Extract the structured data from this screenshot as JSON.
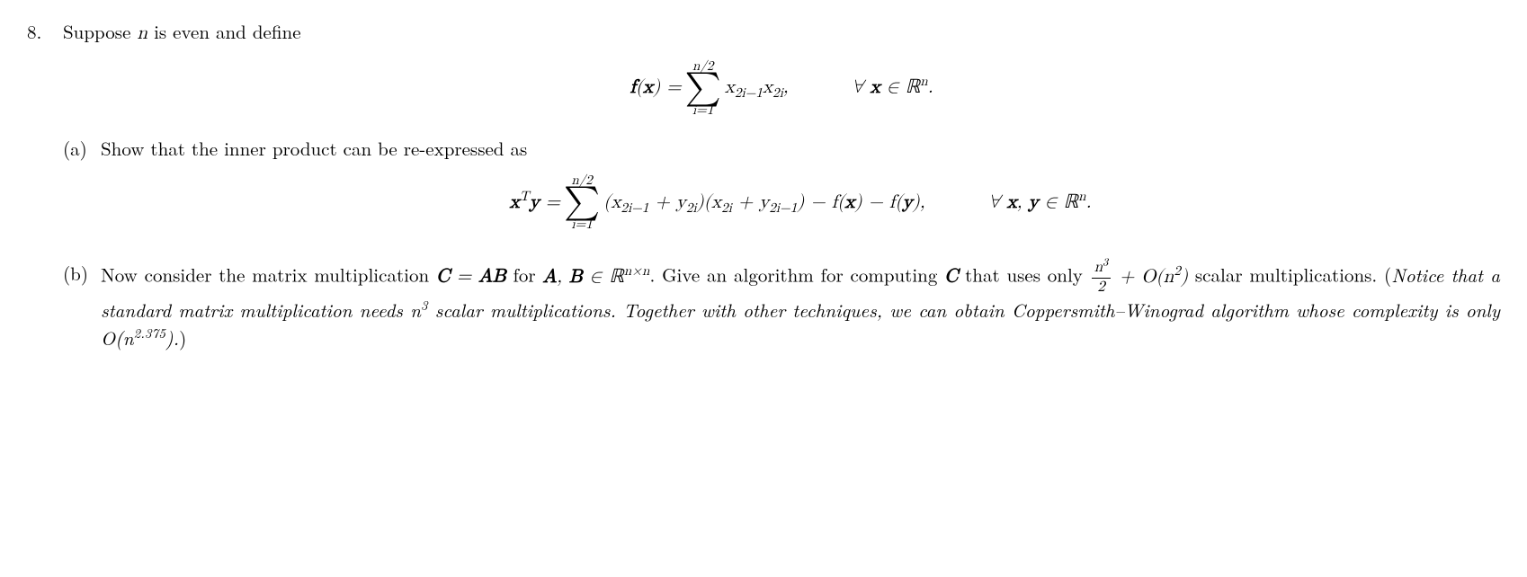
{
  "problem": {
    "number": "8.",
    "intro_prefix": "Suppose ",
    "intro_var": "n",
    "intro_suffix": " is even and define",
    "eq1": {
      "lhs": "f(x)",
      "sum_upper": "n/2",
      "sum_lower": "i=1",
      "summand_html": "x<sub>2i−1</sub>x<sub>2i</sub>,",
      "forall": "∀ x ∈ ℝ",
      "forall_sup": "n",
      "forall_end": "."
    },
    "part_a": {
      "label": "(a)",
      "text": "Show that the inner product can be re-expressed as",
      "eq": {
        "lhs_html": "x<sup>T</sup>y",
        "sum_upper": "n/2",
        "sum_lower": "i=1",
        "summand_html": "(x<sub>2i−1</sub> + y<sub>2i</sub>)(x<sub>2i</sub> + y<sub>2i−1</sub>) − f(x) − f(y),",
        "forall": "∀ x, y ∈ ℝ",
        "forall_sup": "n",
        "forall_end": "."
      }
    },
    "part_b": {
      "label": "(b)",
      "text1": "Now consider the matrix multiplication ",
      "C": "C",
      "eq_sign": " = ",
      "AB": "AB",
      "for": " for ",
      "AB_in": "A, B ∈ ℝ",
      "nxn": "n×n",
      "text2": ". Give an algorithm for computing ",
      "C2": "C",
      "text3": " that uses only ",
      "frac_num": "n³",
      "frac_num_html": "n<sup>3</sup>",
      "frac_den": "2",
      "plus_O": " + O(n",
      "O_sup": "2",
      "O_end": ")",
      "text4": " scalar multiplications. (",
      "italic1": "Notice that a standard matrix multiplication needs n",
      "italic_sup1": "3",
      "italic2": " scalar multiplications. Together with other techniques, we can obtain Coppersmith–Winograd algorithm whose complexity is only O(n",
      "italic_sup2": "2.375",
      "italic3": ").",
      "text5": ")"
    }
  }
}
